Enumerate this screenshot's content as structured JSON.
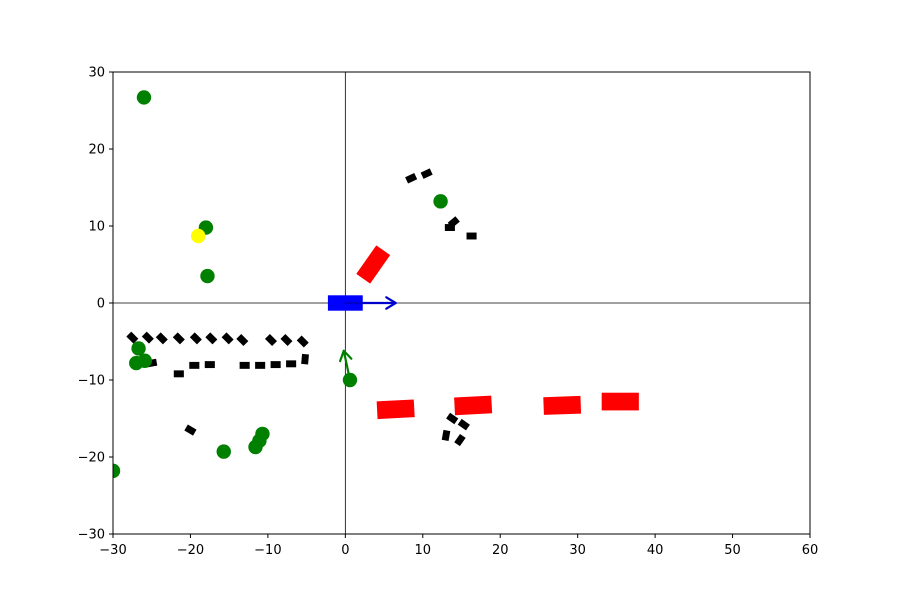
{
  "chart_data": {
    "type": "scatter",
    "title": "",
    "xlabel": "",
    "ylabel": "",
    "xlim": [
      -30,
      60
    ],
    "ylim": [
      -30,
      30
    ],
    "xticks": [
      -30,
      -20,
      -10,
      0,
      10,
      20,
      30,
      40,
      50,
      60
    ],
    "yticks": [
      -30,
      -20,
      -10,
      0,
      10,
      20,
      30
    ],
    "grid": false,
    "crosshair_at_origin": true,
    "colors": {
      "ego": "#0000ff",
      "ego_arrow": "#0000cc",
      "vehicles": "#ff0000",
      "small_objects": "#000000",
      "pedestrians": "#008000",
      "pedestrian_arrow": "#008000",
      "highlight": "#ffff00"
    },
    "ego": {
      "x": 0,
      "y": 0,
      "length": 4.5,
      "width": 2.0,
      "heading_deg": 0,
      "velocity_arrow": {
        "dx": 6.5,
        "dy": 0
      }
    },
    "vehicles": [
      {
        "x": 3.6,
        "y": 5.0,
        "length": 4.5,
        "width": 2.2,
        "heading_deg": 55
      },
      {
        "x": 6.5,
        "y": -13.8,
        "length": 4.8,
        "width": 2.3,
        "heading_deg": 3
      },
      {
        "x": 16.5,
        "y": -13.3,
        "length": 4.8,
        "width": 2.3,
        "heading_deg": 3
      },
      {
        "x": 28.0,
        "y": -13.3,
        "length": 4.8,
        "width": 2.3,
        "heading_deg": 2
      },
      {
        "x": 35.5,
        "y": -12.8,
        "length": 4.8,
        "width": 2.3,
        "heading_deg": 0
      }
    ],
    "small_objects": [
      {
        "x": -27.5,
        "y": -4.5,
        "heading_deg": -45
      },
      {
        "x": -25.5,
        "y": -4.5,
        "heading_deg": -45
      },
      {
        "x": -23.7,
        "y": -4.6,
        "heading_deg": -45
      },
      {
        "x": -21.5,
        "y": -4.6,
        "heading_deg": -45
      },
      {
        "x": -19.3,
        "y": -4.6,
        "heading_deg": -45
      },
      {
        "x": -17.3,
        "y": -4.6,
        "heading_deg": -45
      },
      {
        "x": -15.2,
        "y": -4.6,
        "heading_deg": -45
      },
      {
        "x": -13.3,
        "y": -4.8,
        "heading_deg": -45
      },
      {
        "x": -9.6,
        "y": -4.8,
        "heading_deg": -45
      },
      {
        "x": -7.6,
        "y": -4.8,
        "heading_deg": -45
      },
      {
        "x": -5.5,
        "y": -5.0,
        "heading_deg": -45
      },
      {
        "x": -25.0,
        "y": -7.8,
        "heading_deg": 10
      },
      {
        "x": -21.5,
        "y": -9.2,
        "heading_deg": 0
      },
      {
        "x": -19.5,
        "y": -8.1,
        "heading_deg": 0
      },
      {
        "x": -17.5,
        "y": -8.0,
        "heading_deg": 0
      },
      {
        "x": -13.0,
        "y": -8.1,
        "heading_deg": 0
      },
      {
        "x": -11.0,
        "y": -8.1,
        "heading_deg": 0
      },
      {
        "x": -9.0,
        "y": -8.0,
        "heading_deg": 0
      },
      {
        "x": -7.0,
        "y": -7.9,
        "heading_deg": 0
      },
      {
        "x": -5.2,
        "y": -7.3,
        "heading_deg": 85
      },
      {
        "x": -20.0,
        "y": -16.5,
        "heading_deg": -30
      },
      {
        "x": 8.5,
        "y": 16.2,
        "heading_deg": 25
      },
      {
        "x": 10.5,
        "y": 16.8,
        "heading_deg": 25
      },
      {
        "x": 13.5,
        "y": 9.8,
        "heading_deg": 0
      },
      {
        "x": 14.0,
        "y": 10.5,
        "heading_deg": 40
      },
      {
        "x": 16.3,
        "y": 8.7,
        "heading_deg": 0
      },
      {
        "x": 13.8,
        "y": -15.0,
        "heading_deg": -35
      },
      {
        "x": 15.3,
        "y": -15.8,
        "heading_deg": -35
      },
      {
        "x": 13.0,
        "y": -17.2,
        "heading_deg": 80
      },
      {
        "x": 14.8,
        "y": -17.8,
        "heading_deg": 55
      }
    ],
    "pedestrians": [
      {
        "x": -26.0,
        "y": 26.7
      },
      {
        "x": -18.0,
        "y": 9.8
      },
      {
        "x": -17.8,
        "y": 3.5
      },
      {
        "x": 12.3,
        "y": 13.2
      },
      {
        "x": -26.7,
        "y": -5.9
      },
      {
        "x": -25.9,
        "y": -7.5
      },
      {
        "x": -27.0,
        "y": -7.8
      },
      {
        "x": 0.6,
        "y": -10.0
      },
      {
        "x": -15.7,
        "y": -19.3
      },
      {
        "x": -10.7,
        "y": -17.0
      },
      {
        "x": -11.1,
        "y": -17.9
      },
      {
        "x": -11.6,
        "y": -18.7
      },
      {
        "x": -30.0,
        "y": -21.8
      }
    ],
    "pedestrian_arrows": [
      {
        "x": 0.6,
        "y": -10.0,
        "dx": -0.8,
        "dy": 3.8
      }
    ],
    "highlighted_points": [
      {
        "x": -19.0,
        "y": 8.7
      }
    ]
  }
}
